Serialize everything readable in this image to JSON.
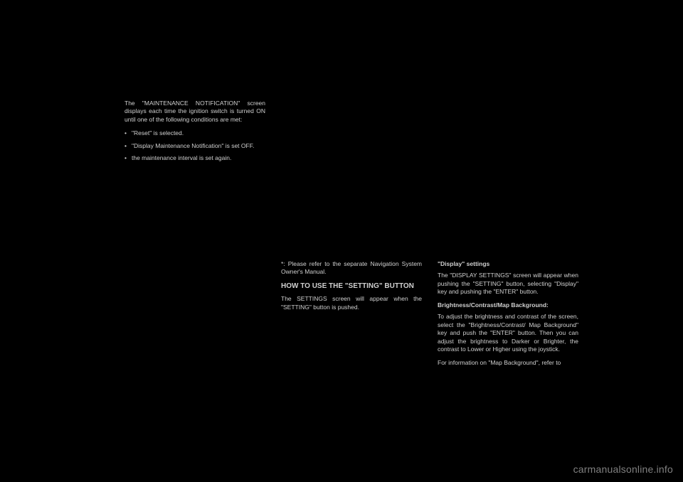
{
  "col1": {
    "intro": "The \"MAINTENANCE NOTIFICATION\" screen displays each time the ignition switch is turned ON until one of the following conditions are met:",
    "bullets": [
      "\"Reset\" is selected.",
      "\"Display Maintenance Notification\" is set OFF.",
      "the maintenance interval is set again."
    ]
  },
  "col2": {
    "note": "*: Please refer to the separate Navigation System Owner's Manual.",
    "heading": "HOW TO USE THE \"SETTING\" BUTTON",
    "para": "The SETTINGS screen will appear when the \"SETTING\" button is pushed."
  },
  "col3": {
    "heading": "\"Display\" settings",
    "para1": "The \"DISPLAY SETTINGS\" screen will appear when pushing the \"SETTING\" button, selecting \"Display\" key and pushing the \"ENTER\" button.",
    "sub1": "Brightness/Contrast/Map Background:",
    "para2": "To adjust the brightness and contrast of the screen, select the \"Brightness/Contrast/ Map Background\" key and push the \"ENTER\" button. Then you can adjust the brightness to Darker or Brighter, the contrast to Lower or Higher using the joystick.",
    "para3": "For information on \"Map Background\", refer to"
  },
  "watermark": "carmanualsonline.info"
}
